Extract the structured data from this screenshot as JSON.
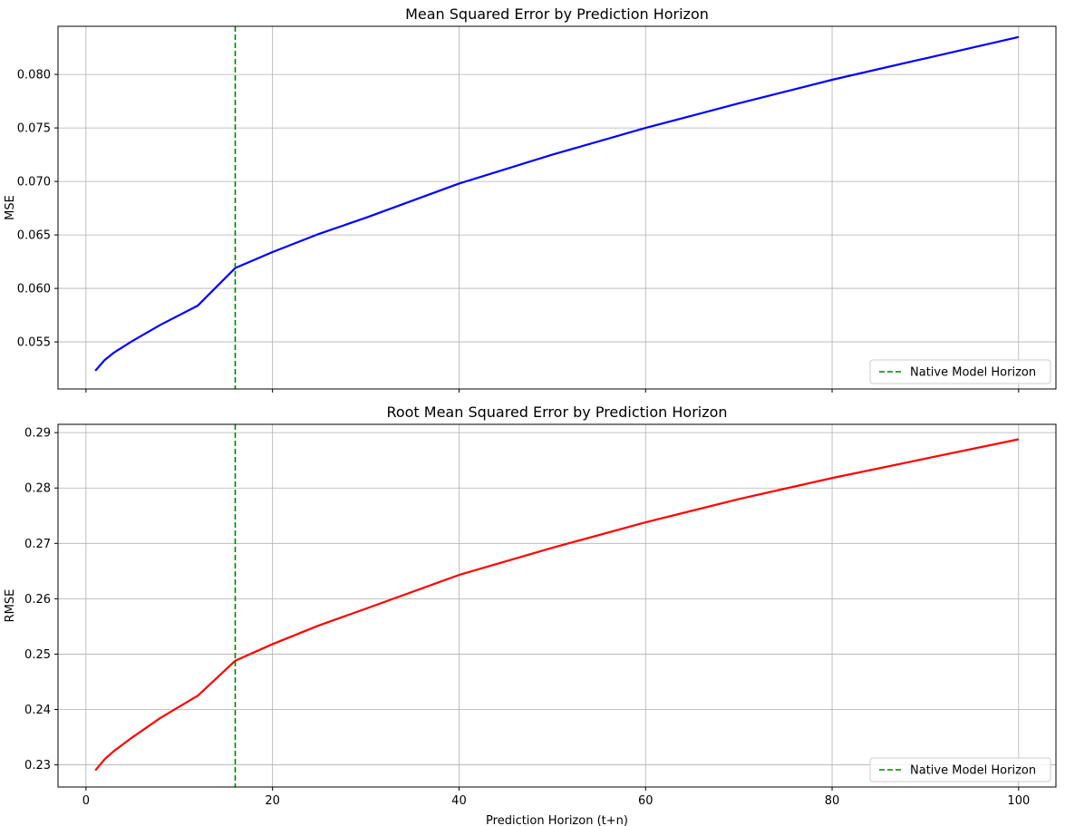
{
  "chart_data": [
    {
      "type": "line",
      "title": "Mean Squared Error by Prediction Horizon",
      "xlabel": "",
      "ylabel": "MSE",
      "xlim": [
        -3,
        104
      ],
      "ylim": [
        0.0506,
        0.0845
      ],
      "x_ticks": [
        0,
        20,
        40,
        60,
        80,
        100
      ],
      "x_tick_labels": [
        "",
        "",
        "",
        "",
        "",
        ""
      ],
      "y_ticks": [
        0.055,
        0.06,
        0.065,
        0.07,
        0.075,
        0.08
      ],
      "y_tick_labels": [
        "0.055",
        "0.060",
        "0.065",
        "0.070",
        "0.075",
        "0.080"
      ],
      "grid": true,
      "legend_position": "lower-right",
      "series": [
        {
          "color": "#0000ff",
          "x": [
            1,
            2,
            3,
            5,
            8,
            12,
            16,
            20,
            25,
            30,
            40,
            50,
            60,
            70,
            80,
            90,
            100
          ],
          "y": [
            0.0523,
            0.0533,
            0.054,
            0.0551,
            0.0566,
            0.0584,
            0.0619,
            0.0634,
            0.0651,
            0.0666,
            0.0698,
            0.0725,
            0.075,
            0.0773,
            0.0795,
            0.0815,
            0.0835
          ]
        }
      ],
      "vlines": [
        {
          "x": 16,
          "color": "#008000",
          "style": "dashed",
          "label": "Native Model Horizon"
        }
      ]
    },
    {
      "type": "line",
      "title": "Root Mean Squared Error by Prediction Horizon",
      "xlabel": "Prediction Horizon (t+n)",
      "ylabel": "RMSE",
      "xlim": [
        -3,
        104
      ],
      "ylim": [
        0.226,
        0.2915
      ],
      "x_ticks": [
        0,
        20,
        40,
        60,
        80,
        100
      ],
      "x_tick_labels": [
        "0",
        "20",
        "40",
        "60",
        "80",
        "100"
      ],
      "y_ticks": [
        0.23,
        0.24,
        0.25,
        0.26,
        0.27,
        0.28,
        0.29
      ],
      "y_tick_labels": [
        "0.23",
        "0.24",
        "0.25",
        "0.26",
        "0.27",
        "0.28",
        "0.29"
      ],
      "grid": true,
      "legend_position": "lower-right",
      "series": [
        {
          "color": "#ff0000",
          "x": [
            1,
            2,
            3,
            5,
            8,
            12,
            16,
            20,
            25,
            30,
            40,
            50,
            60,
            70,
            80,
            90,
            100
          ],
          "y": [
            0.229,
            0.231,
            0.2325,
            0.235,
            0.2385,
            0.2425,
            0.2488,
            0.2518,
            0.2552,
            0.2582,
            0.2643,
            0.2692,
            0.2738,
            0.278,
            0.2818,
            0.2853,
            0.2888
          ]
        }
      ],
      "vlines": [
        {
          "x": 16,
          "color": "#008000",
          "style": "dashed",
          "label": "Native Model Horizon"
        }
      ]
    }
  ]
}
